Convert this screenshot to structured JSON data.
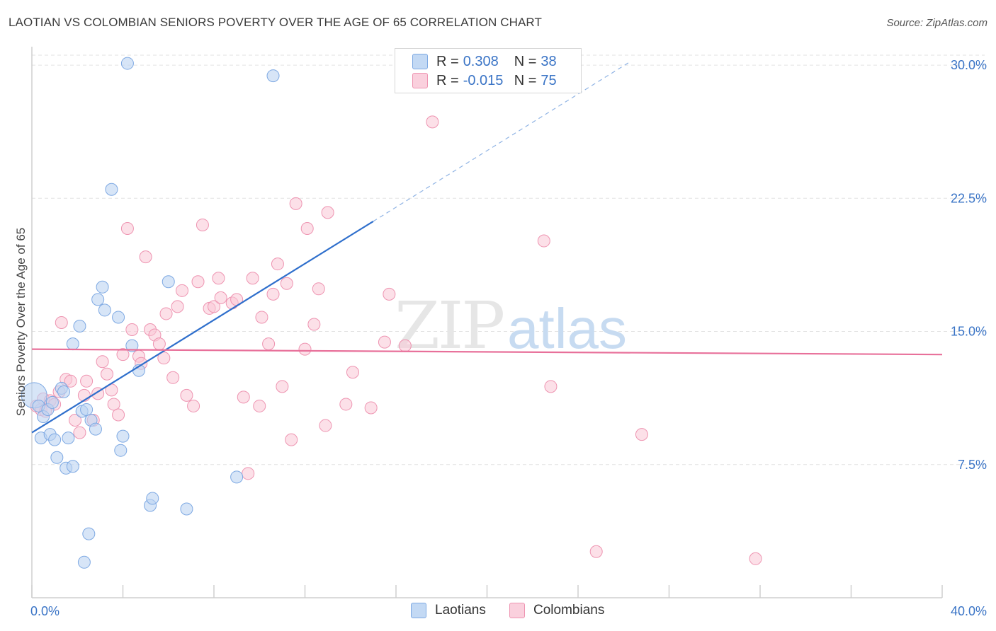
{
  "title": "LAOTIAN VS COLOMBIAN SENIORS POVERTY OVER THE AGE OF 65 CORRELATION CHART",
  "source": "Source: ZipAtlas.com",
  "watermark": "ZIPatlas",
  "legend": {
    "rows": [
      {
        "r_label": "R =",
        "r_value": "0.308",
        "n_label": "N =",
        "n_value": "38",
        "color": "#a9c8ef"
      },
      {
        "r_label": "R =",
        "r_value": "-0.015",
        "n_label": "N =",
        "n_value": "75",
        "color": "#f6b8cb"
      }
    ]
  },
  "bottom_legend": [
    {
      "label": "Laotians",
      "color": "#a9c8ef"
    },
    {
      "label": "Colombians",
      "color": "#f6b8cb"
    }
  ],
  "chart_data": {
    "type": "scatter",
    "title": "LAOTIAN VS COLOMBIAN SENIORS POVERTY OVER THE AGE OF 65 CORRELATION CHART",
    "xlabel": "",
    "ylabel": "Seniors Poverty Over the Age of 65",
    "xlim": [
      0,
      40
    ],
    "ylim": [
      0,
      30.8
    ],
    "x_tick_labels": [
      "0.0%",
      "40.0%"
    ],
    "y_ticks": [
      7.5,
      15.0,
      22.5,
      30.0
    ],
    "y_tick_labels": [
      "7.5%",
      "15.0%",
      "22.5%",
      "30.0%"
    ],
    "grid": true,
    "legend_position": "top-center",
    "colors": {
      "laotians": "#7ea9e3",
      "colombians": "#ee94b1",
      "laotians_line": "#2f6fcc",
      "colombians_line": "#e8709a",
      "axis_text": "#3a74c6"
    },
    "series": [
      {
        "name": "Laotians",
        "points": [
          [
            0.1,
            11.4
          ],
          [
            0.3,
            10.8
          ],
          [
            0.4,
            9.0
          ],
          [
            0.5,
            10.2
          ],
          [
            0.7,
            10.6
          ],
          [
            0.8,
            9.2
          ],
          [
            0.9,
            11.0
          ],
          [
            1.0,
            8.9
          ],
          [
            1.1,
            7.9
          ],
          [
            1.3,
            11.8
          ],
          [
            1.4,
            11.6
          ],
          [
            1.5,
            7.3
          ],
          [
            1.6,
            9.0
          ],
          [
            1.8,
            7.4
          ],
          [
            1.8,
            14.3
          ],
          [
            2.1,
            15.3
          ],
          [
            2.2,
            10.5
          ],
          [
            2.3,
            2.0
          ],
          [
            2.4,
            10.6
          ],
          [
            2.5,
            3.6
          ],
          [
            2.6,
            10.0
          ],
          [
            2.8,
            9.5
          ],
          [
            2.9,
            16.8
          ],
          [
            3.1,
            17.5
          ],
          [
            3.2,
            16.2
          ],
          [
            3.5,
            23.0
          ],
          [
            3.8,
            15.8
          ],
          [
            3.9,
            8.3
          ],
          [
            4.0,
            9.1
          ],
          [
            4.2,
            30.1
          ],
          [
            4.4,
            14.2
          ],
          [
            4.7,
            12.8
          ],
          [
            5.2,
            5.2
          ],
          [
            5.3,
            5.6
          ],
          [
            6.0,
            17.8
          ],
          [
            6.8,
            5.0
          ],
          [
            9.0,
            6.8
          ],
          [
            10.6,
            29.4
          ]
        ]
      },
      {
        "name": "Colombians",
        "points": [
          [
            0.2,
            10.8
          ],
          [
            0.4,
            10.6
          ],
          [
            0.5,
            11.2
          ],
          [
            0.6,
            10.5
          ],
          [
            0.8,
            11.1
          ],
          [
            1.0,
            10.9
          ],
          [
            1.2,
            11.6
          ],
          [
            1.3,
            15.5
          ],
          [
            1.5,
            12.3
          ],
          [
            1.7,
            12.2
          ],
          [
            1.9,
            10.0
          ],
          [
            2.1,
            9.3
          ],
          [
            2.3,
            11.4
          ],
          [
            2.4,
            12.2
          ],
          [
            2.7,
            10.0
          ],
          [
            2.9,
            11.5
          ],
          [
            3.1,
            13.3
          ],
          [
            3.3,
            12.6
          ],
          [
            3.5,
            11.7
          ],
          [
            3.6,
            10.9
          ],
          [
            3.8,
            10.3
          ],
          [
            4.0,
            13.7
          ],
          [
            4.2,
            20.8
          ],
          [
            4.4,
            15.1
          ],
          [
            4.7,
            13.6
          ],
          [
            4.8,
            13.2
          ],
          [
            5.0,
            19.2
          ],
          [
            5.2,
            15.1
          ],
          [
            5.4,
            14.8
          ],
          [
            5.6,
            14.3
          ],
          [
            5.8,
            13.5
          ],
          [
            5.9,
            16.0
          ],
          [
            6.2,
            12.4
          ],
          [
            6.4,
            16.4
          ],
          [
            6.6,
            17.3
          ],
          [
            6.8,
            11.4
          ],
          [
            7.1,
            10.8
          ],
          [
            7.3,
            17.8
          ],
          [
            7.5,
            21.0
          ],
          [
            7.8,
            16.3
          ],
          [
            8.0,
            16.4
          ],
          [
            8.2,
            18.0
          ],
          [
            8.3,
            16.9
          ],
          [
            8.8,
            16.6
          ],
          [
            9.0,
            16.8
          ],
          [
            9.3,
            11.3
          ],
          [
            9.5,
            7.0
          ],
          [
            9.7,
            18.0
          ],
          [
            10.0,
            10.8
          ],
          [
            10.1,
            15.8
          ],
          [
            10.4,
            14.3
          ],
          [
            10.6,
            17.1
          ],
          [
            10.8,
            18.8
          ],
          [
            11.0,
            11.9
          ],
          [
            11.2,
            17.7
          ],
          [
            11.4,
            8.9
          ],
          [
            11.6,
            22.2
          ],
          [
            12.0,
            14.0
          ],
          [
            12.1,
            20.8
          ],
          [
            12.4,
            15.4
          ],
          [
            12.6,
            17.4
          ],
          [
            12.9,
            9.7
          ],
          [
            13.0,
            21.7
          ],
          [
            13.8,
            10.9
          ],
          [
            14.1,
            12.7
          ],
          [
            14.9,
            10.7
          ],
          [
            15.5,
            14.4
          ],
          [
            15.7,
            17.1
          ],
          [
            16.4,
            14.2
          ],
          [
            17.6,
            26.8
          ],
          [
            22.5,
            20.1
          ],
          [
            22.8,
            11.9
          ],
          [
            24.8,
            2.6
          ],
          [
            26.8,
            9.2
          ],
          [
            31.8,
            2.2
          ]
        ]
      }
    ],
    "trend_lines": [
      {
        "series": "Laotians",
        "x": [
          0.0,
          15.0
        ],
        "y": [
          9.3,
          21.2
        ],
        "extended_x": [
          15.0,
          26.3
        ],
        "extended_y": [
          21.2,
          30.2
        ],
        "style": "solid then dashed"
      },
      {
        "series": "Colombians",
        "x": [
          0.0,
          40.0
        ],
        "y": [
          14.0,
          13.7
        ],
        "style": "solid"
      }
    ]
  }
}
